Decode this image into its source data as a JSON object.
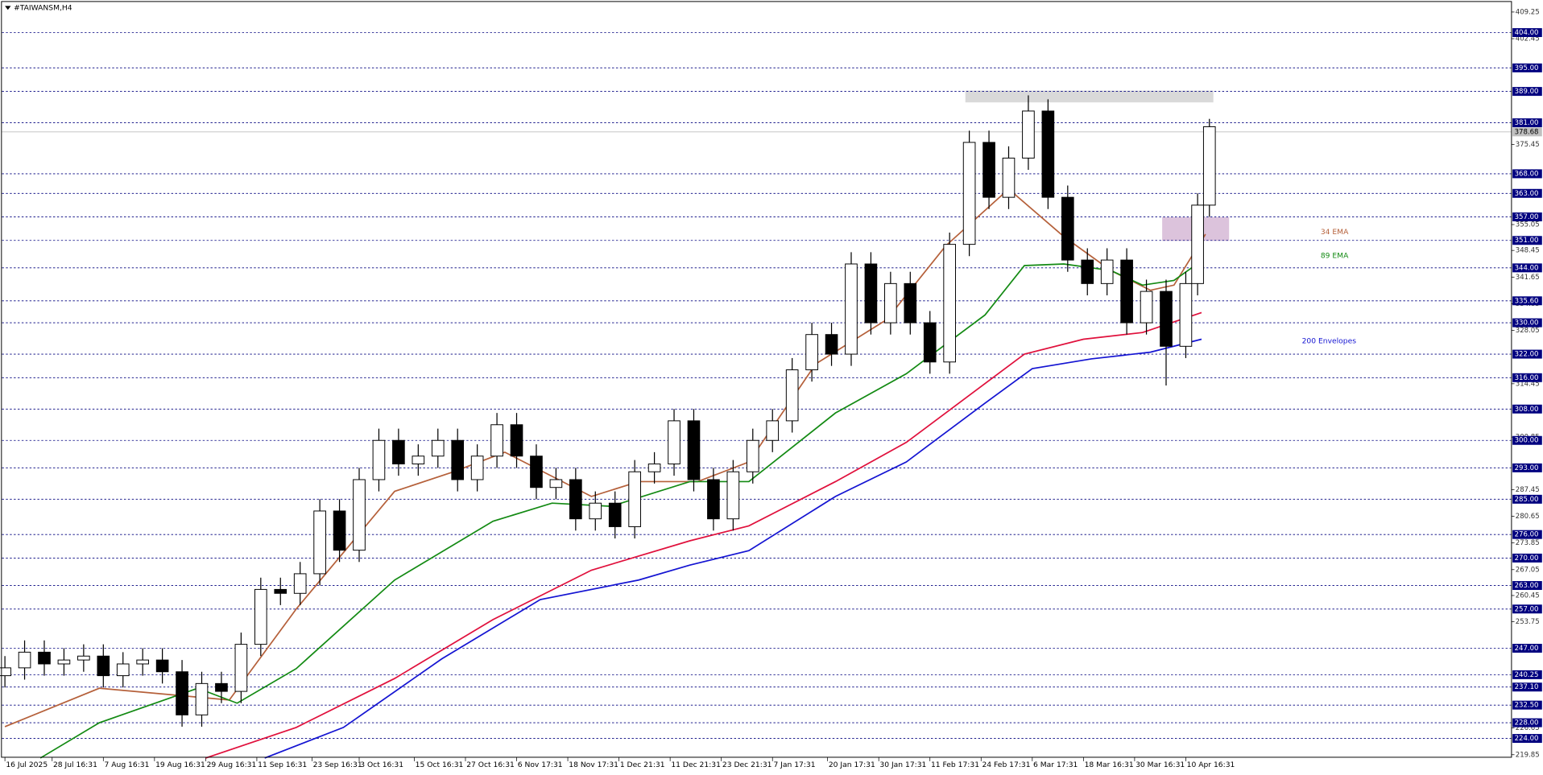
{
  "chart_data": {
    "type": "candlestick",
    "title": "#TAIWANSM,H4",
    "xlim": [
      -0.75,
      382.75
    ],
    "ylim": [
      219.2,
      411.8
    ],
    "xticks": [
      {
        "value": 0,
        "label": "16 Jul 2025"
      },
      {
        "value": 12,
        "label": "28 Jul 16:31"
      },
      {
        "value": 25,
        "label": "7 Aug 16:31"
      },
      {
        "value": 38,
        "label": "19 Aug 16:31"
      },
      {
        "value": 51,
        "label": "29 Aug 16:31"
      },
      {
        "value": 64,
        "label": "11 Sep 16:31"
      },
      {
        "value": 78,
        "label": "23 Sep 16:31"
      },
      {
        "value": 90,
        "label": "3 Oct 16:31"
      },
      {
        "value": 104,
        "label": "15 Oct 16:31"
      },
      {
        "value": 117,
        "label": "27 Oct 16:31"
      },
      {
        "value": 130,
        "label": "6 Nov 17:31"
      },
      {
        "value": 143,
        "label": "18 Nov 17:31"
      },
      {
        "value": 156,
        "label": "1 Dec 21:31"
      },
      {
        "value": 169,
        "label": "11 Dec 21:31"
      },
      {
        "value": 182,
        "label": "23 Dec 21:31"
      },
      {
        "value": 195,
        "label": "7 Jan 17:31"
      },
      {
        "value": 209,
        "label": "20 Jan 17:31"
      },
      {
        "value": 222,
        "label": "30 Jan 17:31"
      },
      {
        "value": 235,
        "label": "11 Feb 17:31"
      },
      {
        "value": 248,
        "label": "24 Feb 17:31"
      },
      {
        "value": 261,
        "label": "6 Mar 17:31"
      },
      {
        "value": 274,
        "label": "18 Mar 16:31"
      },
      {
        "value": 287,
        "label": "30 Mar 16:31"
      },
      {
        "value": 300,
        "label": "10 Apr 16:31"
      }
    ],
    "yticks": [
      409.25,
      402.45,
      375.45,
      355.05,
      348.45,
      341.65,
      334.85,
      328.05,
      314.45,
      300.85,
      287.45,
      280.65,
      273.85,
      267.05,
      260.45,
      253.75,
      226.65,
      219.85
    ],
    "levels": [
      {
        "value": 404,
        "label": "404.00"
      },
      {
        "value": 395,
        "label": "395.00"
      },
      {
        "value": 389,
        "label": "389.00"
      },
      {
        "value": 381,
        "label": "381.00"
      },
      {
        "value": 368,
        "label": "368.00"
      },
      {
        "value": 363,
        "label": "363.00"
      },
      {
        "value": 357,
        "label": "357.00"
      },
      {
        "value": 351,
        "label": "351.00"
      },
      {
        "value": 344,
        "label": "344.00"
      },
      {
        "value": 335.6,
        "label": "335.60"
      },
      {
        "value": 330,
        "label": "330.00"
      },
      {
        "value": 322,
        "label": "322.00"
      },
      {
        "value": 316,
        "label": "316.00"
      },
      {
        "value": 308,
        "label": "308.00"
      },
      {
        "value": 300,
        "label": "300.00"
      },
      {
        "value": 293,
        "label": "293.00"
      },
      {
        "value": 285,
        "label": "285.00"
      },
      {
        "value": 276,
        "label": "276.00"
      },
      {
        "value": 270,
        "label": "270.00"
      },
      {
        "value": 263,
        "label": "263.00"
      },
      {
        "value": 257,
        "label": "257.00"
      },
      {
        "value": 247,
        "label": "247.00"
      },
      {
        "value": 240.25,
        "label": "240.25"
      },
      {
        "value": 237.1,
        "label": "237.10"
      },
      {
        "value": 232.5,
        "label": "232.50"
      },
      {
        "value": 228,
        "label": "228.00"
      },
      {
        "value": 224,
        "label": "224.00"
      }
    ],
    "level_color": "#00007f",
    "current_price": 378.68,
    "zones": [
      {
        "x": [
          244,
          307
        ],
        "y": [
          386.2,
          389.2
        ],
        "color": "#d9d9d9"
      },
      {
        "x": [
          294,
          311
        ],
        "y": [
          350.9,
          356.9
        ],
        "color": "#dcc3dc"
      }
    ],
    "candles": {
      "x": [
        0,
        5,
        10,
        15,
        20,
        25,
        30,
        35,
        40,
        45,
        50,
        55,
        60,
        65,
        70,
        75,
        80,
        85,
        90,
        95,
        100,
        105,
        110,
        115,
        120,
        125,
        130,
        135,
        140,
        145,
        150,
        155,
        160,
        165,
        170,
        175,
        180,
        185,
        190,
        195,
        200,
        205,
        210,
        215,
        220,
        225,
        230,
        235,
        240,
        245,
        250,
        255,
        260,
        265,
        270,
        275,
        280,
        285,
        290,
        295,
        300,
        303,
        306
      ],
      "open": [
        240,
        242,
        246,
        243,
        244,
        245,
        240,
        243,
        244,
        241,
        230,
        238,
        236,
        248,
        262,
        261,
        266,
        282,
        272,
        290,
        300,
        294,
        296,
        300,
        290,
        296,
        304,
        296,
        288,
        290,
        280,
        284,
        278,
        292,
        294,
        305,
        290,
        280,
        292,
        300,
        305,
        318,
        327,
        322,
        345,
        330,
        340,
        330,
        320,
        350,
        376,
        362,
        372,
        384,
        362,
        346,
        340,
        346,
        330,
        338,
        324,
        340,
        360
      ],
      "high": [
        245,
        249,
        249,
        247,
        248,
        248,
        246,
        247,
        247,
        244,
        241,
        241,
        251,
        265,
        265,
        269,
        285,
        285,
        293,
        303,
        303,
        299,
        303,
        303,
        299,
        307,
        307,
        299,
        293,
        293,
        287,
        287,
        295,
        297,
        308,
        308,
        293,
        295,
        303,
        308,
        321,
        330,
        330,
        348,
        348,
        343,
        343,
        333,
        353,
        379,
        379,
        375,
        388,
        387,
        365,
        349,
        349,
        349,
        341,
        341,
        343,
        363,
        382
      ],
      "low": [
        237,
        239,
        240,
        240,
        241,
        237,
        237,
        240,
        238,
        227,
        227,
        233,
        233,
        245,
        258,
        258,
        263,
        269,
        269,
        287,
        291,
        291,
        293,
        287,
        287,
        293,
        293,
        285,
        285,
        277,
        277,
        275,
        275,
        289,
        291,
        287,
        277,
        277,
        289,
        297,
        302,
        315,
        319,
        319,
        327,
        327,
        327,
        317,
        317,
        347,
        359,
        359,
        369,
        359,
        343,
        337,
        337,
        327,
        327,
        314,
        321,
        337,
        357
      ],
      "close": [
        242,
        246,
        243,
        244,
        245,
        240,
        243,
        244,
        241,
        230,
        238,
        236,
        248,
        262,
        261,
        266,
        282,
        272,
        290,
        300,
        294,
        296,
        300,
        290,
        296,
        304,
        296,
        288,
        290,
        280,
        284,
        278,
        292,
        294,
        305,
        290,
        280,
        292,
        300,
        305,
        318,
        327,
        322,
        345,
        330,
        340,
        330,
        320,
        350,
        376,
        362,
        372,
        384,
        362,
        346,
        340,
        346,
        330,
        338,
        324,
        340,
        360,
        380
      ],
      "up_color": "#ffffff",
      "down_color": "#000000",
      "edge_color": "#000000"
    },
    "series": [
      {
        "name": "34 EMA",
        "color": "#b5603a",
        "x": [
          0,
          24,
          57,
          74,
          99,
          114,
          127,
          149,
          161,
          176,
          189,
          206,
          224,
          239,
          255,
          269,
          281,
          291,
          297,
          305
        ],
        "values": [
          227,
          236.8,
          233.8,
          257,
          287,
          292,
          297,
          285.7,
          289.5,
          289.5,
          294.5,
          319.5,
          330.8,
          349.6,
          364.1,
          352,
          343.3,
          338.3,
          339.6,
          352.6
        ]
      },
      {
        "name": "89 EMA",
        "color": "#138a13",
        "x": [
          9,
          24,
          49,
          59,
          74,
          99,
          124,
          139,
          154,
          174,
          189,
          211,
          229,
          249,
          259,
          269,
          281,
          289,
          297,
          304
        ],
        "values": [
          219,
          228,
          236.8,
          233,
          241.8,
          264.4,
          279.4,
          284,
          283.2,
          289.5,
          289.5,
          307,
          317,
          332,
          344.6,
          345,
          343.3,
          339.6,
          340.8,
          345.8
        ]
      },
      {
        "color": "#e0103c",
        "x": [
          51,
          74,
          99,
          124,
          149,
          174,
          189,
          211,
          229,
          249,
          259,
          274,
          289,
          304
        ],
        "values": [
          219,
          226.8,
          239.3,
          254.3,
          266.9,
          274.4,
          278.2,
          289.5,
          299.5,
          314.5,
          322,
          325.8,
          327.5,
          332.6
        ]
      },
      {
        "color": "#1414d2",
        "x": [
          66,
          86,
          111,
          136,
          161,
          174,
          189,
          211,
          229,
          249,
          261,
          276,
          291,
          304
        ],
        "values": [
          219,
          226.8,
          244.3,
          259.4,
          264.4,
          268.2,
          271.9,
          285.7,
          294.5,
          309.5,
          318.3,
          320.8,
          322.5,
          325.8
        ]
      }
    ],
    "envelopes_label": "200 Envelopes"
  }
}
